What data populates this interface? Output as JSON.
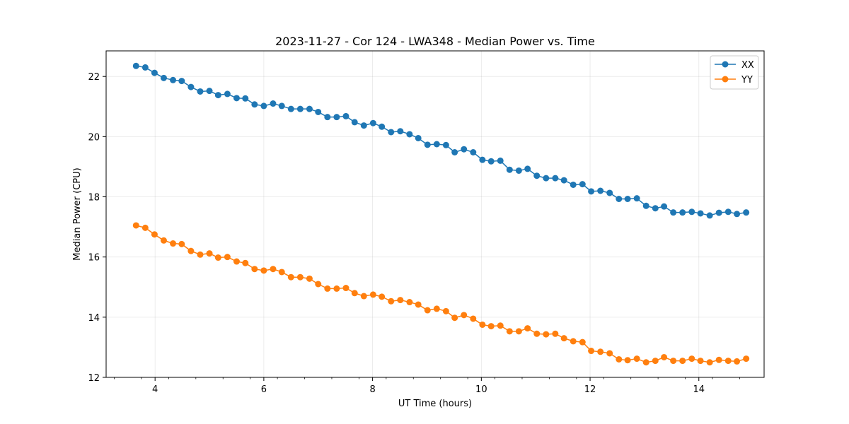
{
  "chart_data": {
    "type": "line",
    "title": "2023-11-27 - Cor 124 - LWA348 - Median Power vs. Time",
    "xlabel": "UT Time (hours)",
    "ylabel": "Median Power (CPU)",
    "xlim": [
      3.1,
      15.2
    ],
    "ylim": [
      12,
      22.85
    ],
    "xticks": [
      4,
      6,
      8,
      10,
      12,
      14
    ],
    "yticks": [
      12,
      14,
      16,
      18,
      20,
      22
    ],
    "xtick_labels": [
      "4",
      "6",
      "8",
      "10",
      "12",
      "14"
    ],
    "ytick_labels": [
      "12",
      "14",
      "16",
      "18",
      "20",
      "22"
    ],
    "grid": true,
    "legend_position": "top-right",
    "x": [
      3.65,
      3.82,
      3.99,
      4.16,
      4.33,
      4.49,
      4.66,
      4.83,
      5.0,
      5.16,
      5.33,
      5.5,
      5.66,
      5.83,
      6.0,
      6.17,
      6.33,
      6.5,
      6.67,
      6.84,
      7.0,
      7.17,
      7.34,
      7.51,
      7.67,
      7.84,
      8.01,
      8.17,
      8.34,
      8.51,
      8.68,
      8.84,
      9.01,
      9.18,
      9.35,
      9.51,
      9.68,
      9.85,
      10.02,
      10.18,
      10.35,
      10.52,
      10.69,
      10.85,
      11.02,
      11.19,
      11.36,
      11.52,
      11.69,
      11.86,
      12.02,
      12.19,
      12.36,
      12.53,
      12.69,
      12.86,
      13.03,
      13.2,
      13.36,
      13.53,
      13.7,
      13.87,
      14.03,
      14.2,
      14.37,
      14.54,
      14.7,
      14.87
    ],
    "series": [
      {
        "name": "XX",
        "color": "#1f77b4",
        "values": [
          22.35,
          22.3,
          22.12,
          21.95,
          21.88,
          21.85,
          21.65,
          21.5,
          21.52,
          21.38,
          21.42,
          21.28,
          21.27,
          21.07,
          21.02,
          21.1,
          21.02,
          20.92,
          20.92,
          20.92,
          20.82,
          20.65,
          20.65,
          20.68,
          20.48,
          20.37,
          20.45,
          20.33,
          20.15,
          20.18,
          20.08,
          19.95,
          19.73,
          19.75,
          19.72,
          19.48,
          19.58,
          19.48,
          19.23,
          19.18,
          19.2,
          18.9,
          18.87,
          18.93,
          18.7,
          18.62,
          18.62,
          18.55,
          18.4,
          18.42,
          18.18,
          18.2,
          18.13,
          17.93,
          17.93,
          17.95,
          17.7,
          17.62,
          17.68,
          17.48,
          17.48,
          17.5,
          17.45,
          17.38,
          17.47,
          17.5,
          17.43,
          17.48
        ]
      },
      {
        "name": "YY",
        "color": "#ff7f0e",
        "values": [
          17.05,
          16.97,
          16.75,
          16.55,
          16.45,
          16.43,
          16.2,
          16.08,
          16.12,
          15.98,
          16.0,
          15.85,
          15.8,
          15.6,
          15.55,
          15.6,
          15.5,
          15.33,
          15.33,
          15.28,
          15.1,
          14.95,
          14.95,
          14.97,
          14.8,
          14.7,
          14.75,
          14.68,
          14.53,
          14.57,
          14.5,
          14.42,
          14.23,
          14.28,
          14.2,
          13.98,
          14.07,
          13.95,
          13.75,
          13.7,
          13.72,
          13.53,
          13.53,
          13.63,
          13.45,
          13.43,
          13.45,
          13.3,
          13.2,
          13.17,
          12.88,
          12.85,
          12.8,
          12.6,
          12.57,
          12.62,
          12.5,
          12.55,
          12.67,
          12.55,
          12.55,
          12.62,
          12.55,
          12.5,
          12.58,
          12.55,
          12.53,
          12.62
        ]
      }
    ]
  }
}
